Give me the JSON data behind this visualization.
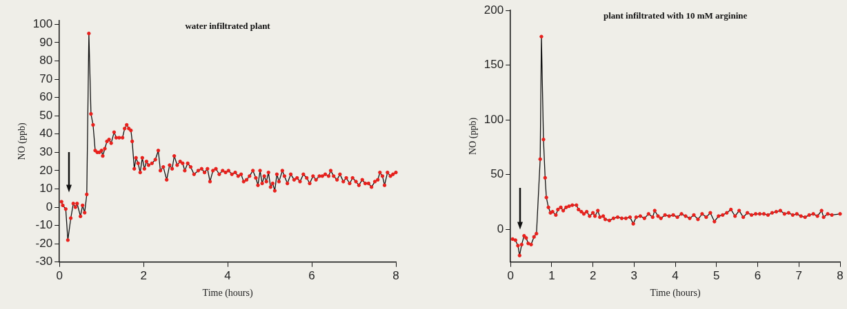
{
  "chart_data": [
    {
      "type": "line",
      "title": "water infiltrated plant",
      "xlabel": "Time (hours)",
      "ylabel": "NO (ppb)",
      "xlim": [
        0,
        8
      ],
      "xticks": [
        0,
        2,
        4,
        6,
        8
      ],
      "ylim": [
        -30,
        102
      ],
      "yticks": [
        -30,
        -20,
        -10,
        0,
        10,
        20,
        30,
        40,
        50,
        60,
        70,
        80,
        90,
        100
      ],
      "grid": false,
      "legend": false,
      "marker": "circle",
      "line_style": "solid",
      "series": [
        {
          "color": "#e8201c",
          "x": [
            0.05,
            0.08,
            0.15,
            0.2,
            0.27,
            0.33,
            0.38,
            0.42,
            0.5,
            0.55,
            0.6,
            0.65,
            0.7,
            0.75,
            0.8,
            0.85,
            0.9,
            0.95,
            1.0,
            1.03,
            1.08,
            1.13,
            1.18,
            1.23,
            1.3,
            1.35,
            1.42,
            1.5,
            1.55,
            1.6,
            1.65,
            1.7,
            1.73,
            1.78,
            1.82,
            1.87,
            1.92,
            1.97,
            2.02,
            2.07,
            2.12,
            2.2,
            2.28,
            2.35,
            2.4,
            2.47,
            2.55,
            2.62,
            2.68,
            2.73,
            2.8,
            2.87,
            2.93,
            2.98,
            3.05,
            3.12,
            3.2,
            3.3,
            3.38,
            3.45,
            3.52,
            3.58,
            3.65,
            3.72,
            3.8,
            3.88,
            3.95,
            4.02,
            4.1,
            4.18,
            4.25,
            4.32,
            4.38,
            4.45,
            4.52,
            4.6,
            4.67,
            4.72,
            4.77,
            4.82,
            4.87,
            4.92,
            4.97,
            5.02,
            5.07,
            5.12,
            5.17,
            5.22,
            5.3,
            5.35,
            5.42,
            5.5,
            5.58,
            5.65,
            5.72,
            5.8,
            5.88,
            5.95,
            6.03,
            6.1,
            6.18,
            6.25,
            6.32,
            6.4,
            6.45,
            6.52,
            6.6,
            6.67,
            6.75,
            6.82,
            6.9,
            6.97,
            7.05,
            7.12,
            7.2,
            7.27,
            7.35,
            7.42,
            7.5,
            7.57,
            7.62,
            7.68,
            7.73,
            7.8,
            7.87,
            7.93,
            8.0
          ],
          "values": [
            3,
            1,
            -1,
            -18,
            -6,
            2,
            0,
            2,
            -5,
            1,
            -3,
            7,
            95,
            51,
            45,
            31,
            30,
            30,
            31,
            28,
            32,
            36,
            37,
            35,
            41,
            38,
            38,
            38,
            43,
            45,
            43,
            42,
            36,
            21,
            27,
            24,
            19,
            27,
            21,
            25,
            23,
            24,
            26,
            31,
            20,
            22,
            15,
            23,
            21,
            28,
            23,
            25,
            24,
            20,
            24,
            22,
            18,
            20,
            21,
            19,
            21,
            14,
            20,
            21,
            18,
            20,
            19,
            20,
            18,
            19,
            17,
            18,
            14,
            15,
            17,
            20,
            16,
            12,
            20,
            13,
            17,
            14,
            19,
            11,
            13,
            9,
            18,
            14,
            20,
            17,
            13,
            18,
            15,
            16,
            14,
            18,
            16,
            13,
            17,
            15,
            17,
            17,
            18,
            17,
            20,
            17,
            15,
            18,
            14,
            16,
            13,
            16,
            14,
            12,
            15,
            13,
            13,
            11,
            14,
            15,
            19,
            17,
            12,
            19,
            17,
            18,
            19
          ]
        }
      ]
    },
    {
      "type": "line",
      "title": "plant infiltrated with 10 mM arginine",
      "xlabel": "Time (hours)",
      "ylabel": "NO (ppb)",
      "xlim": [
        0,
        8
      ],
      "xticks": [
        0,
        1,
        2,
        3,
        4,
        5,
        6,
        7,
        8
      ],
      "ylim": [
        -30,
        200
      ],
      "yticks": [
        0,
        50,
        100,
        150,
        200
      ],
      "grid": false,
      "legend": false,
      "marker": "circle",
      "line_style": "solid",
      "series": [
        {
          "color": "#e8201c",
          "x": [
            0.05,
            0.12,
            0.18,
            0.22,
            0.27,
            0.33,
            0.38,
            0.43,
            0.5,
            0.57,
            0.63,
            0.72,
            0.75,
            0.8,
            0.84,
            0.87,
            0.92,
            0.97,
            1.02,
            1.1,
            1.15,
            1.22,
            1.28,
            1.35,
            1.42,
            1.5,
            1.6,
            1.65,
            1.72,
            1.78,
            1.85,
            1.92,
            2.0,
            2.05,
            2.12,
            2.17,
            2.25,
            2.3,
            2.4,
            2.5,
            2.6,
            2.7,
            2.8,
            2.9,
            2.98,
            3.05,
            3.15,
            3.25,
            3.35,
            3.45,
            3.5,
            3.58,
            3.65,
            3.75,
            3.85,
            3.95,
            4.05,
            4.15,
            4.25,
            4.35,
            4.45,
            4.55,
            4.65,
            4.75,
            4.85,
            4.95,
            5.05,
            5.15,
            5.25,
            5.35,
            5.45,
            5.55,
            5.65,
            5.75,
            5.85,
            5.95,
            6.05,
            6.15,
            6.25,
            6.35,
            6.45,
            6.55,
            6.65,
            6.75,
            6.85,
            6.95,
            7.05,
            7.15,
            7.25,
            7.35,
            7.45,
            7.55,
            7.6,
            7.7,
            7.8,
            8.0
          ],
          "values": [
            -9,
            -10,
            -15,
            -24,
            -14,
            -6,
            -8,
            -13,
            -14,
            -7,
            -4,
            64,
            176,
            82,
            47,
            29,
            20,
            15,
            16,
            13,
            18,
            20,
            17,
            20,
            21,
            22,
            22,
            18,
            16,
            14,
            16,
            12,
            15,
            12,
            17,
            11,
            12,
            9,
            8,
            10,
            11,
            10,
            10,
            11,
            5,
            11,
            12,
            10,
            14,
            11,
            17,
            12,
            10,
            13,
            12,
            13,
            11,
            14,
            12,
            10,
            13,
            9,
            14,
            11,
            15,
            7,
            12,
            13,
            15,
            18,
            12,
            17,
            11,
            15,
            13,
            14,
            14,
            14,
            13,
            15,
            16,
            17,
            14,
            15,
            13,
            14,
            12,
            11,
            13,
            14,
            12,
            17,
            11,
            14,
            13,
            14
          ]
        }
      ]
    }
  ]
}
